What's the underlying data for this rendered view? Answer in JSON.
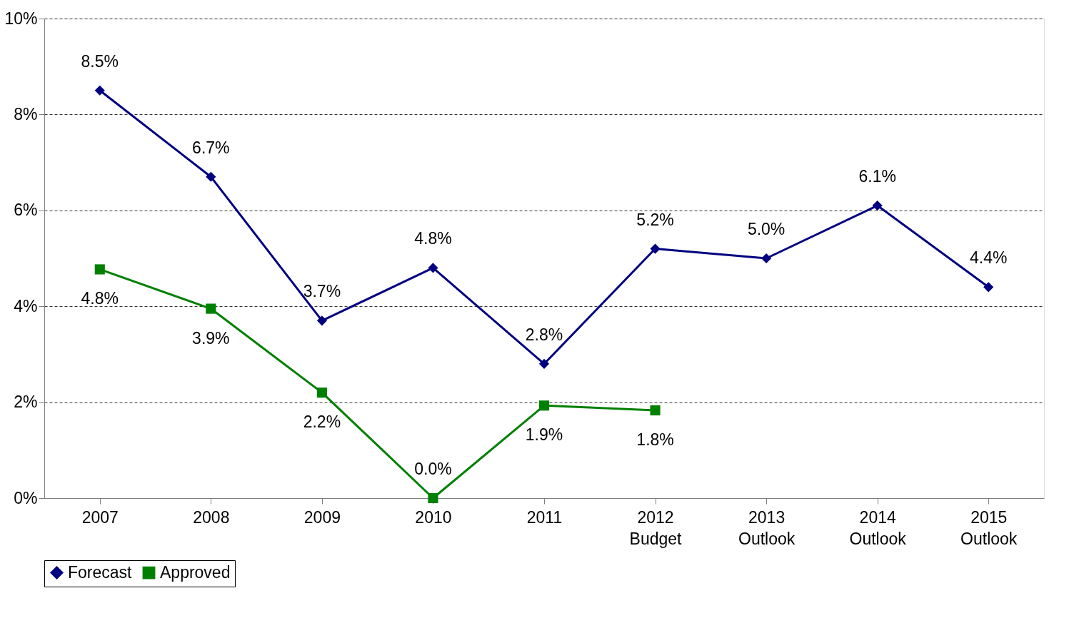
{
  "chart_data": {
    "type": "line",
    "categories": [
      "2007",
      "2008",
      "2009",
      "2010",
      "2011",
      "2012 Budget",
      "2013 Outlook",
      "2014 Outlook",
      "2015 Outlook"
    ],
    "series": [
      {
        "name": "Forecast",
        "color": "#000080",
        "marker": "diamond",
        "values": [
          8.5,
          6.7,
          3.7,
          4.8,
          2.8,
          5.2,
          5.0,
          6.1,
          4.4
        ],
        "value_labels": [
          "8.5%",
          "6.7%",
          "3.7%",
          "4.8%",
          "2.8%",
          "5.2%",
          "5.0%",
          "6.1%",
          "4.4%"
        ]
      },
      {
        "name": "Approved",
        "color": "#008000",
        "marker": "square",
        "values": [
          4.77,
          3.95,
          2.2,
          0.0,
          1.93,
          1.83,
          null,
          null,
          null
        ],
        "value_labels": [
          "4.8%",
          "3.9%",
          "2.2%",
          "0.0%",
          "1.9%",
          "1.8%",
          null,
          null,
          null
        ]
      }
    ],
    "ylim": [
      0,
      10
    ],
    "yticks": [
      {
        "value": 0,
        "label": "0%"
      },
      {
        "value": 2,
        "label": "2%"
      },
      {
        "value": 4,
        "label": "4%"
      },
      {
        "value": 6,
        "label": "6%"
      },
      {
        "value": 8,
        "label": "8%"
      },
      {
        "value": 10,
        "label": "10%"
      }
    ],
    "grid": "y",
    "line_style": "solid",
    "legend": "bottom"
  }
}
